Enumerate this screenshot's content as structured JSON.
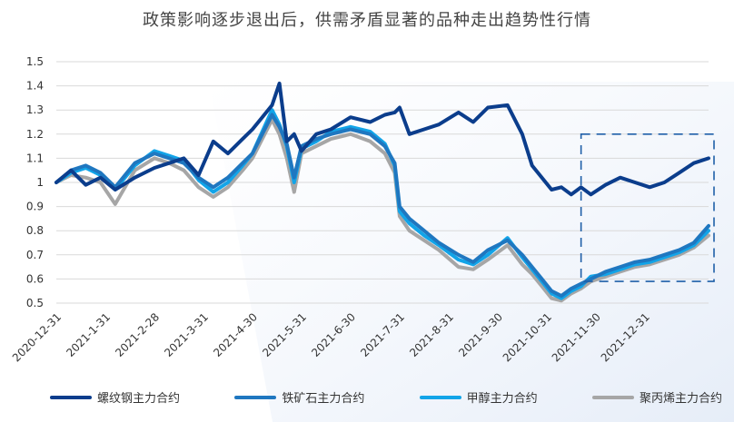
{
  "title": "政策影响逐步退出后，供需矛盾显著的品种走出趋势性行情",
  "chart_data": {
    "type": "line",
    "title": "政策影响逐步退出后，供需矛盾显著的品种走出趋势性行情",
    "xlabel": "",
    "ylabel": "",
    "ylim": [
      0.5,
      1.5
    ],
    "yticks": [
      "1.5",
      "1.4",
      "1.3",
      "1.2",
      "1.1",
      "1",
      "0.9",
      "0.8",
      "0.7",
      "0.6",
      "0.5"
    ],
    "ytick_values": [
      1.5,
      1.4,
      1.3,
      1.2,
      1.1,
      1.0,
      0.9,
      0.8,
      0.7,
      0.6,
      0.5
    ],
    "xticks": [
      "2020-12-31",
      "2021-1-31",
      "2021-2-28",
      "2021-3-31",
      "2021-4-30",
      "2021-5-31",
      "2021-6-30",
      "2021-7-31",
      "2021-8-31",
      "2021-9-30",
      "2021-10-31",
      "2021-11-30",
      "2021-12-31"
    ],
    "grid": "horizontal",
    "legend_position": "bottom",
    "annotation": "dashed box highlighting 2021-11-30 to end",
    "highlight_range": {
      "x_from": 10.7,
      "x_to": 13.3,
      "y_from": 0.59,
      "y_to": 1.2
    },
    "series": [
      {
        "name": "螺纹钢主力合约",
        "color": "#0b3d8c",
        "x": [
          0,
          0.3,
          0.6,
          0.9,
          1.2,
          1.6,
          2.0,
          2.3,
          2.6,
          2.9,
          3.2,
          3.5,
          3.8,
          4.0,
          4.2,
          4.4,
          4.55,
          4.7,
          4.85,
          5.0,
          5.3,
          5.6,
          6.0,
          6.4,
          6.7,
          6.9,
          7.0,
          7.2,
          7.5,
          7.8,
          8.2,
          8.5,
          8.8,
          9.2,
          9.5,
          9.7,
          9.9,
          10.1,
          10.3,
          10.5,
          10.7,
          10.9,
          11.2,
          11.5,
          11.8,
          12.1,
          12.4,
          12.7,
          13.0,
          13.3
        ],
        "values": [
          1.0,
          1.05,
          0.99,
          1.02,
          0.97,
          1.02,
          1.06,
          1.08,
          1.1,
          1.03,
          1.17,
          1.12,
          1.18,
          1.22,
          1.27,
          1.32,
          1.41,
          1.17,
          1.2,
          1.13,
          1.2,
          1.22,
          1.27,
          1.25,
          1.28,
          1.29,
          1.31,
          1.2,
          1.22,
          1.24,
          1.29,
          1.25,
          1.31,
          1.32,
          1.2,
          1.07,
          1.02,
          0.97,
          0.98,
          0.95,
          0.98,
          0.95,
          0.99,
          1.02,
          1.0,
          0.98,
          1.0,
          1.04,
          1.08,
          1.1
        ]
      },
      {
        "name": "铁矿石主力合约",
        "color": "#1f77c0",
        "x": [
          0,
          0.3,
          0.6,
          0.9,
          1.2,
          1.6,
          2.0,
          2.3,
          2.6,
          2.9,
          3.2,
          3.5,
          3.8,
          4.0,
          4.2,
          4.4,
          4.55,
          4.7,
          4.85,
          5.0,
          5.3,
          5.6,
          6.0,
          6.4,
          6.7,
          6.9,
          7.0,
          7.2,
          7.5,
          7.8,
          8.2,
          8.5,
          8.8,
          9.2,
          9.5,
          9.7,
          9.9,
          10.1,
          10.3,
          10.5,
          10.7,
          10.9,
          11.2,
          11.5,
          11.8,
          12.1,
          12.4,
          12.7,
          13.0,
          13.3
        ],
        "values": [
          1.0,
          1.05,
          1.07,
          1.04,
          0.98,
          1.08,
          1.12,
          1.1,
          1.08,
          1.02,
          0.98,
          1.02,
          1.08,
          1.12,
          1.2,
          1.28,
          1.23,
          1.16,
          1.02,
          1.15,
          1.18,
          1.2,
          1.22,
          1.2,
          1.15,
          1.08,
          0.9,
          0.85,
          0.8,
          0.75,
          0.7,
          0.67,
          0.72,
          0.76,
          0.7,
          0.65,
          0.6,
          0.55,
          0.53,
          0.56,
          0.58,
          0.6,
          0.63,
          0.65,
          0.67,
          0.68,
          0.7,
          0.72,
          0.75,
          0.82
        ]
      },
      {
        "name": "甲醇主力合约",
        "color": "#12a4e8",
        "x": [
          0,
          0.3,
          0.6,
          0.9,
          1.2,
          1.6,
          2.0,
          2.3,
          2.6,
          2.9,
          3.2,
          3.5,
          3.8,
          4.0,
          4.2,
          4.4,
          4.55,
          4.7,
          4.85,
          5.0,
          5.3,
          5.6,
          6.0,
          6.4,
          6.7,
          6.9,
          7.0,
          7.2,
          7.5,
          7.8,
          8.2,
          8.5,
          8.8,
          9.2,
          9.5,
          9.7,
          9.9,
          10.1,
          10.3,
          10.5,
          10.7,
          10.9,
          11.2,
          11.5,
          11.8,
          12.1,
          12.4,
          12.7,
          13.0,
          13.3
        ],
        "values": [
          1.0,
          1.04,
          1.06,
          1.03,
          0.97,
          1.07,
          1.13,
          1.11,
          1.09,
          1.01,
          0.96,
          1.0,
          1.07,
          1.12,
          1.21,
          1.3,
          1.24,
          1.15,
          1.0,
          1.14,
          1.17,
          1.21,
          1.23,
          1.21,
          1.16,
          1.07,
          0.88,
          0.83,
          0.78,
          0.74,
          0.68,
          0.66,
          0.7,
          0.77,
          0.69,
          0.64,
          0.59,
          0.54,
          0.52,
          0.55,
          0.57,
          0.61,
          0.62,
          0.64,
          0.66,
          0.67,
          0.69,
          0.71,
          0.74,
          0.8
        ]
      },
      {
        "name": "聚丙烯主力合约",
        "color": "#a6a6a6",
        "x": [
          0,
          0.3,
          0.6,
          0.9,
          1.2,
          1.6,
          2.0,
          2.3,
          2.6,
          2.9,
          3.2,
          3.5,
          3.8,
          4.0,
          4.2,
          4.4,
          4.55,
          4.7,
          4.85,
          5.0,
          5.3,
          5.6,
          6.0,
          6.4,
          6.7,
          6.9,
          7.0,
          7.2,
          7.5,
          7.8,
          8.2,
          8.5,
          8.8,
          9.2,
          9.5,
          9.7,
          9.9,
          10.1,
          10.3,
          10.5,
          10.7,
          10.9,
          11.2,
          11.5,
          11.8,
          12.1,
          12.4,
          12.7,
          13.0,
          13.3
        ],
        "values": [
          1.0,
          1.03,
          1.02,
          1.0,
          0.91,
          1.05,
          1.1,
          1.08,
          1.05,
          0.98,
          0.94,
          0.98,
          1.05,
          1.1,
          1.18,
          1.26,
          1.2,
          1.1,
          0.96,
          1.12,
          1.15,
          1.18,
          1.2,
          1.17,
          1.12,
          1.04,
          0.86,
          0.8,
          0.76,
          0.72,
          0.65,
          0.64,
          0.68,
          0.74,
          0.66,
          0.62,
          0.57,
          0.52,
          0.51,
          0.54,
          0.56,
          0.59,
          0.61,
          0.63,
          0.65,
          0.66,
          0.68,
          0.7,
          0.73,
          0.78
        ]
      }
    ]
  }
}
